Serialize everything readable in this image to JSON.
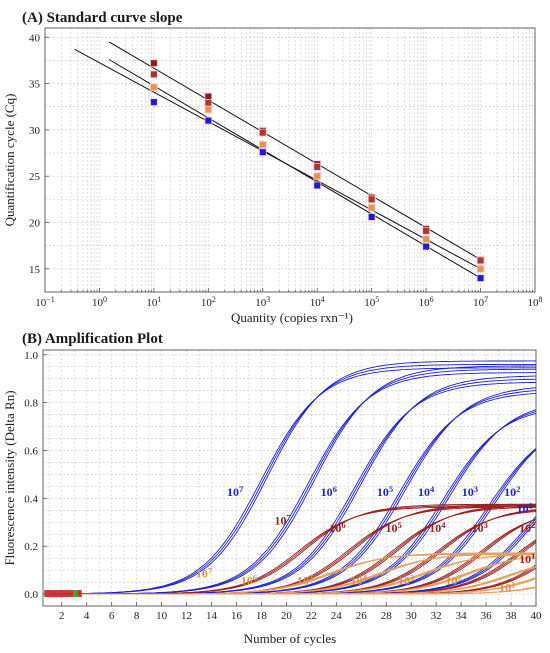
{
  "chart_data": [
    {
      "type": "scatter",
      "title": "(A) Standard curve slope",
      "xlabel": "Quantity (copies rxn⁻¹)",
      "ylabel": "Quantification cycle (Cq)",
      "xscale": "log",
      "xlim": [
        0.1,
        100000000
      ],
      "ylim": [
        12.5,
        41
      ],
      "x_ticks": [
        0.1,
        1,
        10,
        100,
        1000,
        10000,
        100000,
        1000000,
        10000000,
        100000000
      ],
      "x_tick_labels": [
        [
          "10",
          "−1"
        ],
        [
          "10",
          "0"
        ],
        [
          "10",
          "1"
        ],
        [
          "10",
          "2"
        ],
        [
          "10",
          "3"
        ],
        [
          "10",
          "4"
        ],
        [
          "10",
          "5"
        ],
        [
          "10",
          "6"
        ],
        [
          "10",
          "7"
        ],
        [
          "10",
          "8"
        ]
      ],
      "y_ticks": [
        15,
        20,
        25,
        30,
        35,
        40
      ],
      "grid": true,
      "x": [
        10,
        100,
        1000,
        10000,
        100000,
        1000000,
        10000000
      ],
      "series": [
        {
          "color": "#8b1a1a",
          "values": [
            37.2,
            33.6,
            29.9,
            26.3,
            22.7,
            19.3,
            16.0
          ]
        },
        {
          "color": "#a8392a",
          "values": [
            36.0,
            32.9,
            29.7,
            26.0,
            22.5,
            19.1,
            15.9
          ]
        },
        {
          "color": "#e8944f",
          "values": [
            34.6,
            32.2,
            28.4,
            25.0,
            21.6,
            18.2,
            15.0
          ]
        },
        {
          "color": "#1a1adb",
          "values": [
            33.0,
            31.0,
            27.6,
            24.0,
            20.6,
            17.4,
            14.0
          ]
        }
      ],
      "fit_lines": [
        {
          "color": "#111111",
          "x": [
            1.5,
            10000000
          ],
          "y": [
            39.5,
            16.0
          ]
        },
        {
          "color": "#111111",
          "x": [
            0.35,
            10000000
          ],
          "y": [
            38.7,
            15.0
          ]
        },
        {
          "color": "#111111",
          "x": [
            1.5,
            10000000
          ],
          "y": [
            37.6,
            14.0
          ]
        }
      ]
    },
    {
      "type": "line",
      "title": "(B) Amplification Plot",
      "xlabel": "Number of cycles",
      "ylabel": "Fluorescence intensity (Delta Rn)",
      "xlim": [
        0.5,
        40
      ],
      "ylim": [
        -0.05,
        1.02
      ],
      "x_ticks": [
        2,
        4,
        6,
        8,
        10,
        12,
        14,
        16,
        18,
        20,
        22,
        24,
        26,
        28,
        30,
        32,
        34,
        36,
        38,
        40
      ],
      "y_ticks": [
        0.0,
        0.2,
        0.4,
        0.6,
        0.8,
        1.0
      ],
      "y_tick_labels": [
        "0.0",
        "0.2",
        "0.4",
        "0.6",
        "0.8",
        "1.0"
      ],
      "grid": true,
      "groups": [
        {
          "color": "#1f1fd0",
          "ct": [
            16.2,
            20.0,
            23.7,
            27.3,
            30.8,
            34.4,
            37.6
          ],
          "plateau": [
            0.96,
            0.94,
            0.9,
            0.86,
            0.8,
            0.74,
            0.58
          ],
          "k": 0.42,
          "replicates": 3
        },
        {
          "color": "#9c1e1e",
          "ct": [
            19.3,
            23.2,
            26.8,
            30.3,
            33.8,
            36.8,
            39.5
          ],
          "plateau": [
            0.37,
            0.37,
            0.37,
            0.36,
            0.36,
            0.35,
            0.34
          ],
          "k": 0.45,
          "replicates": 3
        },
        {
          "color": "#e6a15c",
          "ct": [
            21.5,
            25.5,
            29.0,
            32.5,
            36.0,
            38.8,
            41.2
          ],
          "plateau": [
            0.17,
            0.17,
            0.17,
            0.17,
            0.16,
            0.16,
            0.15
          ],
          "k": 0.45,
          "replicates": 3
        }
      ],
      "curve_labels": [
        {
          "base": "10",
          "exp": "7",
          "color": "#1f1fd0",
          "x": 15.9,
          "y": 0.41
        },
        {
          "base": "10",
          "exp": "6",
          "color": "#1f1fd0",
          "x": 23.4,
          "y": 0.41
        },
        {
          "base": "10",
          "exp": "5",
          "color": "#1f1fd0",
          "x": 27.9,
          "y": 0.41
        },
        {
          "base": "10",
          "exp": "4",
          "color": "#1f1fd0",
          "x": 31.2,
          "y": 0.41
        },
        {
          "base": "10",
          "exp": "3",
          "color": "#1f1fd0",
          "x": 34.7,
          "y": 0.41
        },
        {
          "base": "10",
          "exp": "2",
          "color": "#1f1fd0",
          "x": 38.1,
          "y": 0.41
        },
        {
          "base": "10",
          "exp": "1",
          "color": "#1f1fd0",
          "x": 39.1,
          "y": 0.34
        },
        {
          "base": "10",
          "exp": "7",
          "color": "#9c1e1e",
          "x": 19.7,
          "y": 0.29
        },
        {
          "base": "10",
          "exp": "6",
          "color": "#9c1e1e",
          "x": 24.1,
          "y": 0.26
        },
        {
          "base": "10",
          "exp": "5",
          "color": "#9c1e1e",
          "x": 28.6,
          "y": 0.26
        },
        {
          "base": "10",
          "exp": "4",
          "color": "#9c1e1e",
          "x": 32.1,
          "y": 0.26
        },
        {
          "base": "10",
          "exp": "3",
          "color": "#9c1e1e",
          "x": 35.5,
          "y": 0.26
        },
        {
          "base": "10",
          "exp": "2",
          "color": "#9c1e1e",
          "x": 39.3,
          "y": 0.26
        },
        {
          "base": "10",
          "exp": "1",
          "color": "#9c1e1e",
          "x": 39.3,
          "y": 0.13
        },
        {
          "base": "10",
          "exp": "7",
          "color": "#d4954a",
          "x": 13.4,
          "y": 0.07
        },
        {
          "base": "10",
          "exp": "6",
          "color": "#d4954a",
          "x": 17.0,
          "y": 0.04
        },
        {
          "base": "10",
          "exp": "5",
          "color": "#d4954a",
          "x": 21.5,
          "y": 0.04
        },
        {
          "base": "10",
          "exp": "4",
          "color": "#d4954a",
          "x": 25.8,
          "y": 0.04
        },
        {
          "base": "10",
          "exp": "3",
          "color": "#d4954a",
          "x": 29.6,
          "y": 0.04
        },
        {
          "base": "10",
          "exp": "2",
          "color": "#d4954a",
          "x": 33.4,
          "y": 0.04
        },
        {
          "base": "10",
          "exp": "1",
          "color": "#d4954a",
          "x": 37.7,
          "y": 0.01
        }
      ]
    }
  ]
}
